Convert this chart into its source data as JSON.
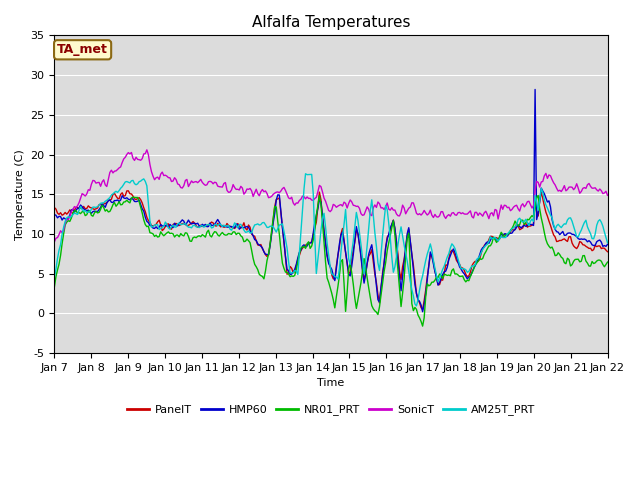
{
  "title": "Alfalfa Temperatures",
  "ylabel": "Temperature (C)",
  "xlabel": "Time",
  "annotation": "TA_met",
  "ylim": [
    -5,
    35
  ],
  "plot_bg": "#dcdcdc",
  "fig_bg": "#ffffff",
  "series": {
    "PanelT": {
      "color": "#cc0000",
      "lw": 1.0
    },
    "HMP60": {
      "color": "#0000cc",
      "lw": 1.0
    },
    "NR01_PRT": {
      "color": "#00bb00",
      "lw": 1.0
    },
    "SonicT": {
      "color": "#cc00cc",
      "lw": 1.0
    },
    "AM25T_PRT": {
      "color": "#00cccc",
      "lw": 1.0
    }
  },
  "xtick_labels": [
    "Jan 7",
    "Jan 8",
    "Jan 9",
    "Jan 10",
    "Jan 11",
    "Jan 12",
    "Jan 13",
    "Jan 14",
    "Jan 15",
    "Jan 16",
    "Jan 17",
    "Jan 18",
    "Jan 19",
    "Jan 20",
    "Jan 21",
    "Jan 22"
  ],
  "ytick_values": [
    -5,
    0,
    5,
    10,
    15,
    20,
    25,
    30,
    35
  ],
  "grid_color": "#ffffff",
  "title_fontsize": 11,
  "label_fontsize": 8,
  "tick_fontsize": 8,
  "legend_fontsize": 8
}
